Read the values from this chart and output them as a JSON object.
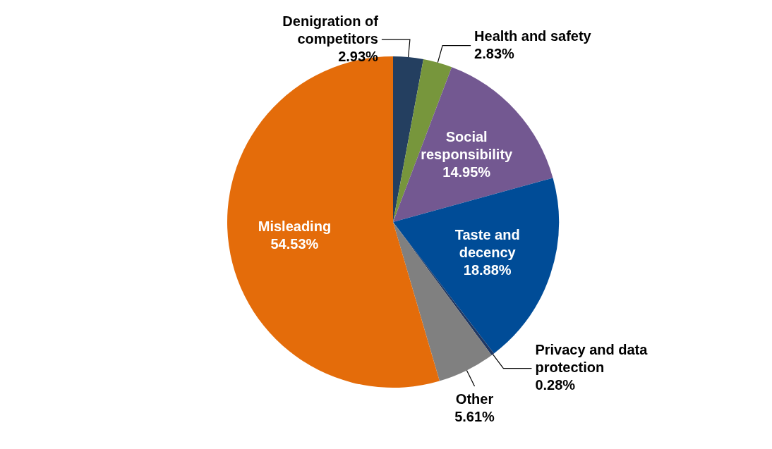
{
  "chart_data": {
    "type": "pie",
    "categories": [
      "Denigration of competitors",
      "Health and safety",
      "Social responsibility",
      "Taste and decency",
      "Privacy and data protection",
      "Other",
      "Misleading"
    ],
    "values": [
      2.93,
      2.83,
      14.95,
      18.88,
      0.28,
      5.61,
      54.53
    ],
    "colors": [
      "#243f60",
      "#77963c",
      "#735891",
      "#004c97",
      "#1f3864",
      "#808080",
      "#e46c0a"
    ],
    "value_labels": [
      "2.93%",
      "2.83%",
      "14.95%",
      "18.88%",
      "0.28%",
      "5.61%",
      "54.53%"
    ]
  }
}
